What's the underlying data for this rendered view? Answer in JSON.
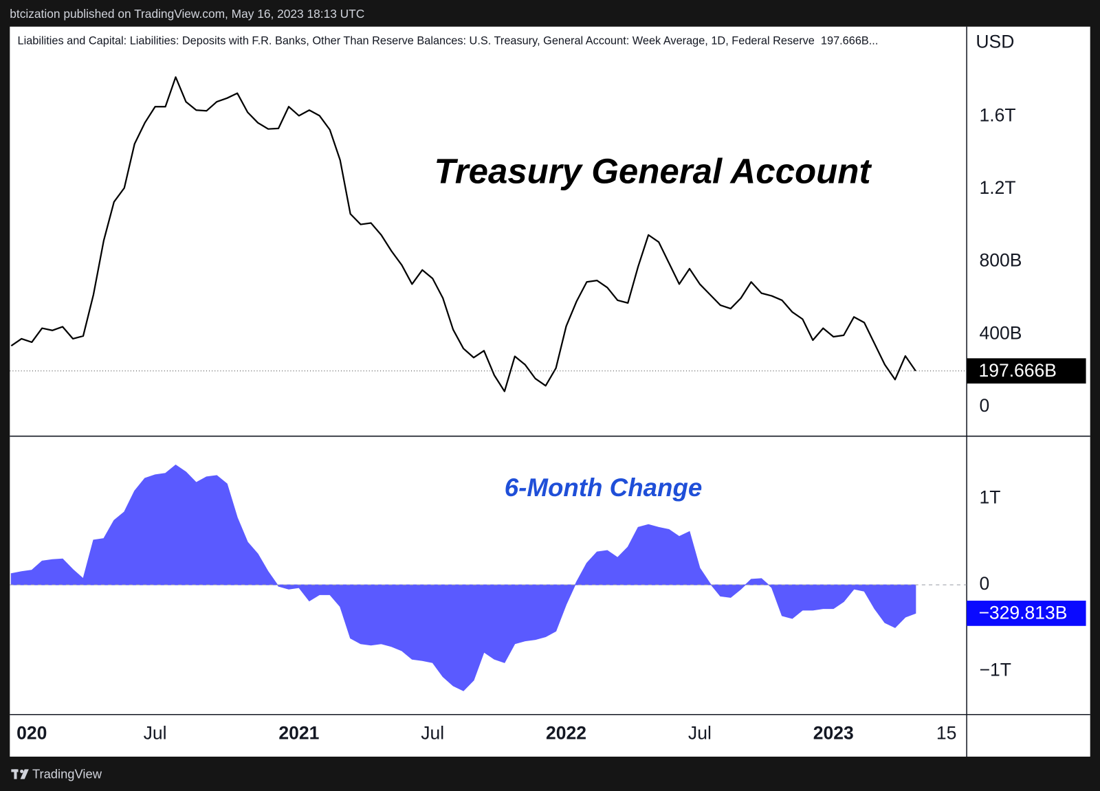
{
  "page": {
    "published": "btcization published on TradingView.com, May 16, 2023 18:13 UTC",
    "brand": "TradingView"
  },
  "chart_data": [
    {
      "type": "line",
      "title": "Liabilities and Capital: Liabilities: Deposits with F.R. Banks, Other Than Reserve Balances: U.S. Treasury, General Account: Week Average, 1D, Federal Reserve  197.666B...",
      "annotation": "Treasury General Account",
      "annotation_color": "#000000",
      "ylabel": "USD",
      "color": "#000000",
      "values": [
        336,
        375,
        356,
        433,
        421,
        441,
        375,
        390,
        618,
        916,
        1129,
        1206,
        1449,
        1565,
        1654,
        1654,
        1817,
        1681,
        1635,
        1631,
        1681,
        1701,
        1728,
        1623,
        1565,
        1531,
        1534,
        1654,
        1604,
        1635,
        1604,
        1527,
        1360,
        1063,
        1005,
        1013,
        947,
        858,
        781,
        676,
        754,
        707,
        599,
        425,
        321,
        271,
        309,
        174,
        85,
        278,
        232,
        155,
        116,
        213,
        444,
        580,
        688,
        696,
        657,
        587,
        572,
        773,
        947,
        908,
        792,
        676,
        761,
        676,
        618,
        560,
        541,
        599,
        688,
        626,
        611,
        587,
        522,
        483,
        367,
        433,
        386,
        394,
        495,
        464,
        348,
        232,
        150,
        280,
        197.666,
        null,
        null,
        null,
        null,
        null
      ],
      "value_labels": [
        null,
        null,
        null,
        null,
        null,
        null,
        null,
        null,
        null,
        null,
        null,
        null,
        null,
        null,
        null,
        null,
        null,
        null,
        null,
        null,
        null,
        null,
        null,
        null,
        null,
        null,
        null,
        null,
        null,
        null,
        null,
        null,
        null,
        null,
        null,
        null,
        null,
        null,
        null,
        null,
        null,
        null,
        null,
        null,
        null,
        null,
        null,
        null,
        null,
        null,
        null,
        null,
        null,
        null,
        null,
        null,
        null,
        null,
        null,
        null,
        null,
        null,
        null,
        null,
        null,
        null,
        null,
        null,
        null,
        null,
        null,
        null,
        null,
        null,
        null,
        null,
        null,
        null,
        null,
        null,
        null,
        null,
        null,
        null,
        null,
        null,
        null,
        null,
        "197.666B",
        null,
        null,
        null,
        null,
        null
      ],
      "ylim": [
        -162,
        2095
      ],
      "yticks": [
        0,
        {
          "value": 400,
          "label": "400B"
        },
        {
          "value": 800,
          "label": "800B"
        },
        {
          "value": 1200,
          "label": "1.2T"
        },
        {
          "value": 1600,
          "label": "1.6T"
        }
      ],
      "grid": false
    },
    {
      "type": "area",
      "annotation": "6-Month Change",
      "annotation_color": "#1f4fd8",
      "color": "#5a5aff",
      "label_color": "#0a0aff",
      "categories": [
        null,
        null,
        "020",
        null,
        null,
        null,
        null,
        null,
        null,
        null,
        null,
        null,
        null,
        null,
        "Jul",
        null,
        null,
        null,
        null,
        null,
        null,
        null,
        null,
        null,
        null,
        null,
        null,
        null,
        "2021",
        null,
        null,
        null,
        null,
        null,
        null,
        null,
        null,
        null,
        null,
        null,
        null,
        "Jul",
        null,
        null,
        null,
        null,
        null,
        null,
        null,
        null,
        null,
        null,
        null,
        null,
        "2022",
        null,
        null,
        null,
        null,
        null,
        null,
        null,
        null,
        null,
        null,
        null,
        null,
        "Jul",
        null,
        null,
        null,
        null,
        null,
        null,
        null,
        null,
        null,
        null,
        null,
        null,
        "2023",
        null,
        null,
        null,
        null,
        null,
        null,
        null,
        null,
        null,
        null,
        "15",
        null,
        null
      ],
      "values": [
        130,
        154,
        171,
        276,
        293,
        301,
        179,
        73,
        520,
        537,
        748,
        846,
        1089,
        1236,
        1276,
        1293,
        1390,
        1309,
        1187,
        1252,
        1268,
        1171,
        780,
        496,
        358,
        154,
        -16,
        -49,
        -33,
        -187,
        -114,
        -114,
        -252,
        -618,
        -683,
        -699,
        -683,
        -715,
        -764,
        -862,
        -878,
        -902,
        -1065,
        -1171,
        -1228,
        -1106,
        -780,
        -862,
        -902,
        -683,
        -650,
        -634,
        -602,
        -537,
        -228,
        33,
        252,
        382,
        398,
        317,
        439,
        667,
        699,
        667,
        642,
        561,
        618,
        195,
        16,
        -130,
        -146,
        -49,
        65,
        73,
        -33,
        -358,
        -390,
        -293,
        -293,
        -276,
        -276,
        -195,
        -49,
        -73,
        -276,
        -439,
        -496,
        -374,
        -329.813,
        null,
        null,
        null,
        null,
        null
      ],
      "value_labels": [
        null,
        null,
        null,
        null,
        null,
        null,
        null,
        null,
        null,
        null,
        null,
        null,
        null,
        null,
        null,
        null,
        null,
        null,
        null,
        null,
        null,
        null,
        null,
        null,
        null,
        null,
        null,
        null,
        null,
        null,
        null,
        null,
        null,
        null,
        null,
        null,
        null,
        null,
        null,
        null,
        null,
        null,
        null,
        null,
        null,
        null,
        null,
        null,
        null,
        null,
        null,
        null,
        null,
        null,
        null,
        null,
        null,
        null,
        null,
        null,
        null,
        null,
        null,
        null,
        null,
        null,
        null,
        null,
        null,
        null,
        null,
        null,
        null,
        null,
        null,
        null,
        null,
        null,
        null,
        null,
        null,
        null,
        null,
        null,
        null,
        null,
        null,
        null,
        "−329.813B",
        null,
        null,
        null,
        null,
        null
      ],
      "ylim": [
        -1504,
        1724
      ],
      "yticks": [
        {
          "value": -1000,
          "label": "−1T"
        },
        0,
        {
          "value": 1000,
          "label": "1T"
        }
      ],
      "grid": false
    }
  ]
}
